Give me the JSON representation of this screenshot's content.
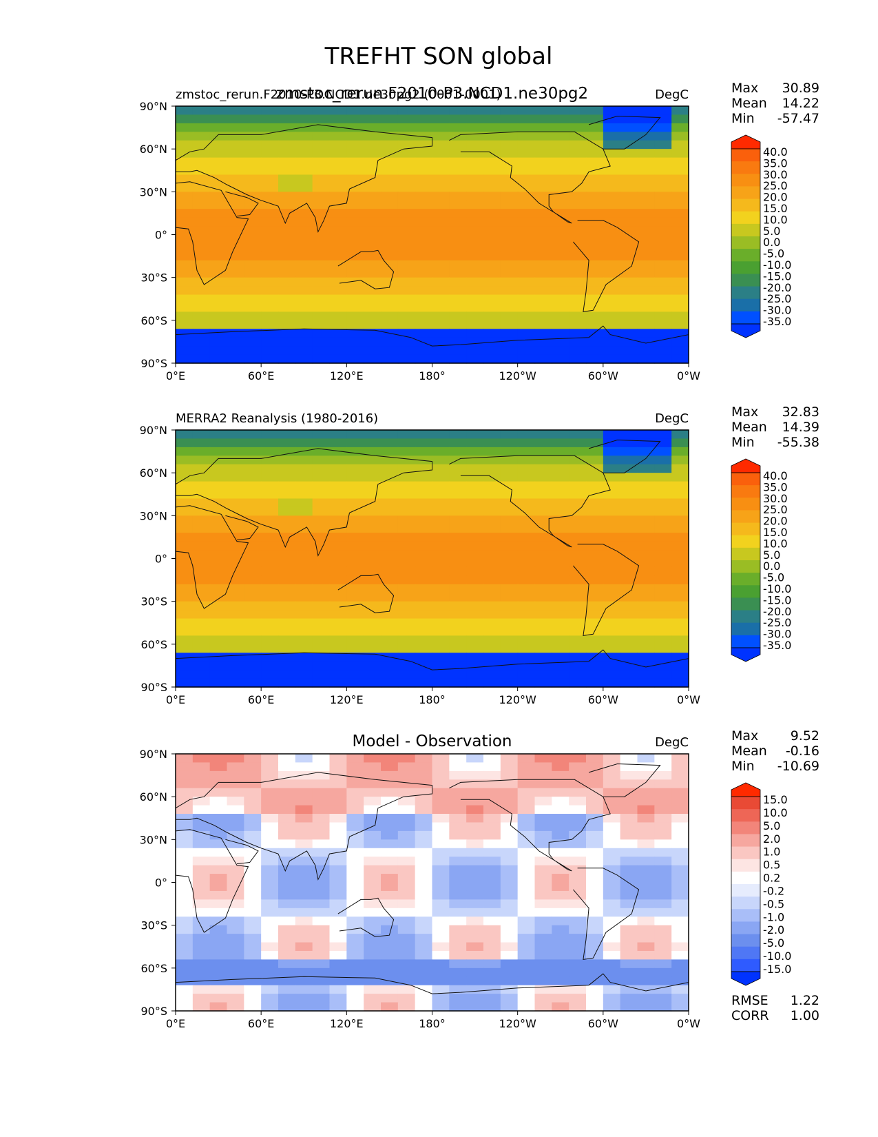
{
  "title": "TREFHT SON global",
  "units": "DegC",
  "x_ticks": [
    "0°E",
    "60°E",
    "120°E",
    "180°",
    "120°W",
    "60°W",
    "0°W"
  ],
  "y_ticks": [
    "90°N",
    "60°N",
    "30°N",
    "0°",
    "30°S",
    "60°S",
    "90°S"
  ],
  "palettes": {
    "temperature": [
      "#0033ff",
      "#0050ff",
      "#1a6fa8",
      "#2b7f86",
      "#3a8f52",
      "#4aa031",
      "#6aae2a",
      "#9abd24",
      "#c8c81f",
      "#f2d21e",
      "#f5b91c",
      "#f7a318",
      "#f88f12",
      "#f97a10",
      "#fa600c",
      "#ff2a00"
    ],
    "difference": [
      "#0033ff",
      "#2f5bff",
      "#4f77f5",
      "#6c8fee",
      "#8aa6f3",
      "#a9bef8",
      "#c8d6fb",
      "#e6ecfd",
      "#ffffff",
      "#fde5e3",
      "#fac7c2",
      "#f6a79f",
      "#f2857a",
      "#ee6656",
      "#e94a35",
      "#ff2a00"
    ]
  },
  "panels": [
    {
      "id": "test",
      "left_title": "zmstoc_rerun.F2010-P3.NCD1.ne30pg2 (0001-0001)",
      "center_title": "zmstoc_rerun.F2010-P3.NCD1.ne30pg2",
      "units": "DegC",
      "stats": {
        "max_label": "Max",
        "max": "30.89",
        "mean_label": "Mean",
        "mean": "14.22",
        "min_label": "Min",
        "min": "-57.47"
      },
      "palette": "temperature",
      "levels": [
        "40.0",
        "35.0",
        "30.0",
        "25.0",
        "20.0",
        "15.0",
        "10.0",
        "5.0",
        "0.0",
        "-5.0",
        "-10.0",
        "-15.0",
        "-20.0",
        "-25.0",
        "-30.0",
        "-35.0"
      ]
    },
    {
      "id": "ref",
      "left_title": "MERRA2 Reanalysis (1980-2016)",
      "center_title": "",
      "units": "DegC",
      "stats": {
        "max_label": "Max",
        "max": "32.83",
        "mean_label": "Mean",
        "mean": "14.39",
        "min_label": "Min",
        "min": "-55.38"
      },
      "palette": "temperature",
      "levels": [
        "40.0",
        "35.0",
        "30.0",
        "25.0",
        "20.0",
        "15.0",
        "10.0",
        "5.0",
        "0.0",
        "-5.0",
        "-10.0",
        "-15.0",
        "-20.0",
        "-25.0",
        "-30.0",
        "-35.0"
      ]
    },
    {
      "id": "diff",
      "left_title": "",
      "center_title": "Model - Observation",
      "units": "DegC",
      "stats": {
        "max_label": "Max",
        "max": "9.52",
        "mean_label": "Mean",
        "mean": "-0.16",
        "min_label": "Min",
        "min": "-10.69"
      },
      "palette": "difference",
      "levels": [
        "15.0",
        "10.0",
        "5.0",
        "2.0",
        "1.0",
        "0.5",
        "0.2",
        "-0.2",
        "-0.5",
        "-1.0",
        "-2.0",
        "-5.0",
        "-10.0",
        "-15.0"
      ],
      "extra_stats": {
        "rmse_label": "RMSE",
        "rmse": "1.22",
        "corr_label": "CORR",
        "corr": "1.00"
      }
    }
  ],
  "chart_data": {
    "type": "heatmap",
    "title": "TREFHT SON global",
    "variable": "TREFHT",
    "season": "SON",
    "units": "DegC",
    "xlim": [
      0,
      360
    ],
    "ylim": [
      -90,
      90
    ],
    "maps": [
      {
        "name": "zmstoc_rerun.F2010-P3.NCD1.ne30pg2 (0001-0001)",
        "max": 30.89,
        "mean": 14.22,
        "min": -57.47,
        "levels": [
          -35,
          -30,
          -25,
          -20,
          -15,
          -10,
          -5,
          0,
          5,
          10,
          15,
          20,
          25,
          30,
          35,
          40
        ]
      },
      {
        "name": "MERRA2 Reanalysis (1980-2016)",
        "max": 32.83,
        "mean": 14.39,
        "min": -55.38,
        "levels": [
          -35,
          -30,
          -25,
          -20,
          -15,
          -10,
          -5,
          0,
          5,
          10,
          15,
          20,
          25,
          30,
          35,
          40
        ]
      },
      {
        "name": "Model - Observation",
        "max": 9.52,
        "mean": -0.16,
        "min": -10.69,
        "rmse": 1.22,
        "corr": 1.0,
        "levels": [
          -15,
          -10,
          -5,
          -2,
          -1,
          -0.5,
          -0.2,
          0.2,
          0.5,
          1,
          2,
          5,
          10,
          15
        ]
      }
    ]
  }
}
